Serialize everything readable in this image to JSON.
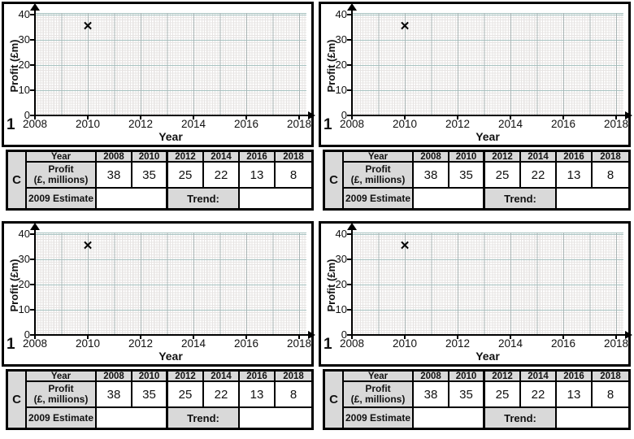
{
  "colors": {
    "table_header_bg": "#d9d9d9",
    "grid_minor": "#e7e4e3",
    "grid_major_vertical": "#a9b4b4",
    "grid_major_horizontal": "#a9c4c2",
    "ink": "#000000"
  },
  "chart_data": {
    "type": "scatter",
    "title": "",
    "xlabel": "Year",
    "ylabel": "Profit (£m)",
    "xlim": [
      2008,
      2018
    ],
    "ylim": [
      0,
      40
    ],
    "x_ticks": [
      "2008",
      "2010",
      "2012",
      "2014",
      "2016",
      "2018"
    ],
    "y_ticks": [
      "0",
      "10",
      "20",
      "30",
      "40"
    ],
    "grid": "fine graph paper; minor lines every 1 unit (y) and 0.2 year (x); major lines every 10 units (y) and 1 year (x)",
    "legend": "none",
    "marker_glyph": "✕",
    "points": [
      {
        "x": 2010,
        "y": 35
      }
    ],
    "note": "identical chart repeated in all four worksheet panels"
  },
  "panel": {
    "question_number": "1",
    "table": {
      "corner_label": "C",
      "year_row_label": "Year",
      "years": [
        "2008",
        "2010",
        "2012",
        "2014",
        "2016",
        "2018"
      ],
      "profit_label_line1": "Profit",
      "profit_label_line2": "(£, millions)",
      "profits": [
        "38",
        "35",
        "25",
        "22",
        "13",
        "8"
      ],
      "estimate_row_label": "2009 Estimate",
      "trend_label": "Trend:"
    }
  }
}
